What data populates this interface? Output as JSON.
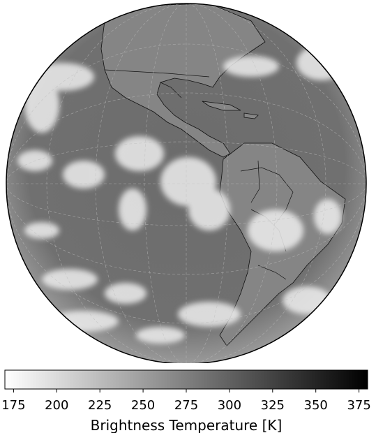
{
  "colorbar": {
    "label": "Brightness Temperature [K]",
    "ticks": [
      "175",
      "200",
      "225",
      "250",
      "275",
      "300",
      "325",
      "350",
      "375"
    ],
    "range": [
      170,
      380
    ],
    "colors": {
      "low": "#ffffff",
      "high": "#000000"
    }
  },
  "globe": {
    "background_gray": "#6f6f6f",
    "cloud_color": "#f2f2f2",
    "land_color": "#8a8a8a"
  }
}
